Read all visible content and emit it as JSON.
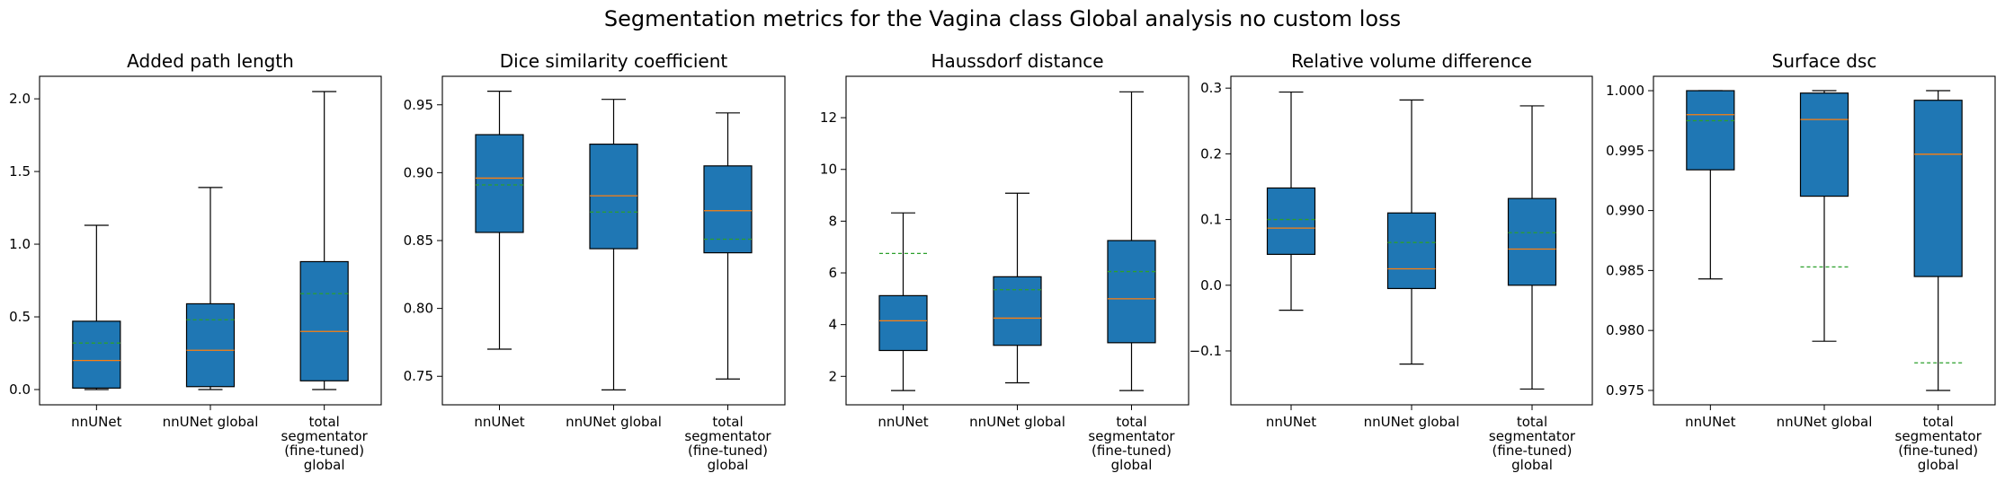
{
  "suptitle": "Segmentation metrics for the Vagina class Global analysis no custom loss",
  "colors": {
    "box_fill": "#1f77b4",
    "median": "#ff7f0e",
    "mean": "#2ca02c",
    "edge": "#000000"
  },
  "chart_data": [
    {
      "type": "box",
      "title": "Added path length",
      "categories": [
        "nnUNet",
        "nnUNet global",
        "total\nsegmentator\n(fine-tuned)\nglobal"
      ],
      "ylim": [
        -0.105,
        2.155
      ],
      "yticks": [
        0.0,
        0.5,
        1.0,
        1.5,
        2.0
      ],
      "yticklabels": [
        "0.0",
        "0.5",
        "1.0",
        "1.5",
        "2.0"
      ],
      "boxes": [
        {
          "whislo": 0.0,
          "q1": 0.01,
          "med": 0.2,
          "q3": 0.47,
          "whishi": 1.13,
          "mean": 0.32
        },
        {
          "whislo": 0.0,
          "q1": 0.02,
          "med": 0.27,
          "q3": 0.59,
          "whishi": 1.39,
          "mean": 0.48
        },
        {
          "whislo": 0.0,
          "q1": 0.06,
          "med": 0.4,
          "q3": 0.88,
          "whishi": 2.05,
          "mean": 0.66
        }
      ],
      "grid": false,
      "legend": "none"
    },
    {
      "type": "box",
      "title": "Dice similarity coefficient",
      "categories": [
        "nnUNet",
        "nnUNet global",
        "total\nsegmentator\n(fine-tuned)\nglobal"
      ],
      "ylim": [
        0.729,
        0.971
      ],
      "yticks": [
        0.75,
        0.8,
        0.85,
        0.9,
        0.95
      ],
      "yticklabels": [
        "0.75",
        "0.80",
        "0.85",
        "0.90",
        "0.95"
      ],
      "boxes": [
        {
          "whislo": 0.77,
          "q1": 0.856,
          "med": 0.896,
          "q3": 0.928,
          "whishi": 0.96,
          "mean": 0.891
        },
        {
          "whislo": 0.74,
          "q1": 0.844,
          "med": 0.883,
          "q3": 0.921,
          "whishi": 0.954,
          "mean": 0.871
        },
        {
          "whislo": 0.748,
          "q1": 0.841,
          "med": 0.872,
          "q3": 0.905,
          "whishi": 0.944,
          "mean": 0.851
        }
      ],
      "grid": false,
      "legend": "none"
    },
    {
      "type": "box",
      "title": "Haussdorf distance",
      "categories": [
        "nnUNet",
        "nnUNet global",
        "total\nsegmentator\n(fine-tuned)\nglobal"
      ],
      "ylim": [
        0.9,
        13.6
      ],
      "yticks": [
        2,
        4,
        6,
        8,
        10,
        12
      ],
      "yticklabels": [
        "2",
        "4",
        "6",
        "8",
        "10",
        "12"
      ],
      "boxes": [
        {
          "whislo": 1.45,
          "q1": 3.0,
          "med": 4.15,
          "q3": 5.12,
          "whishi": 8.32,
          "mean": 6.75
        },
        {
          "whislo": 1.75,
          "q1": 3.2,
          "med": 4.25,
          "q3": 5.85,
          "whishi": 9.08,
          "mean": 5.35
        },
        {
          "whislo": 1.45,
          "q1": 3.3,
          "med": 5.0,
          "q3": 7.25,
          "whishi": 13.0,
          "mean": 6.05
        }
      ],
      "grid": false,
      "legend": "none"
    },
    {
      "type": "box",
      "title": "Relative volume difference",
      "categories": [
        "nnUNet",
        "nnUNet global",
        "total\nsegmentator\n(fine-tuned)\nglobal"
      ],
      "ylim": [
        -0.182,
        0.318
      ],
      "yticks": [
        -0.1,
        0.0,
        0.1,
        0.2,
        0.3
      ],
      "yticklabels": [
        "−0.1",
        "0.0",
        "0.1",
        "0.2",
        "0.3"
      ],
      "boxes": [
        {
          "whislo": -0.038,
          "q1": 0.047,
          "med": 0.087,
          "q3": 0.148,
          "whishi": 0.294,
          "mean": 0.1
        },
        {
          "whislo": -0.12,
          "q1": -0.005,
          "med": 0.025,
          "q3": 0.11,
          "whishi": 0.282,
          "mean": 0.065
        },
        {
          "whislo": -0.158,
          "q1": 0.0,
          "med": 0.055,
          "q3": 0.132,
          "whishi": 0.273,
          "mean": 0.08
        }
      ],
      "grid": false,
      "legend": "none"
    },
    {
      "type": "box",
      "title": "Surface dsc",
      "categories": [
        "nnUNet",
        "nnUNet global",
        "total\nsegmentator\n(fine-tuned)\nglobal"
      ],
      "ylim": [
        0.9738,
        1.0012
      ],
      "yticks": [
        0.975,
        0.98,
        0.985,
        0.99,
        0.995,
        1.0
      ],
      "yticklabels": [
        "0.975",
        "0.980",
        "0.985",
        "0.990",
        "0.995",
        "1.000"
      ],
      "boxes": [
        {
          "whislo": 0.9843,
          "q1": 0.9934,
          "med": 0.998,
          "q3": 1.0,
          "whishi": 1.0,
          "mean": 0.9975
        },
        {
          "whislo": 0.9791,
          "q1": 0.9912,
          "med": 0.9976,
          "q3": 0.9998,
          "whishi": 1.0,
          "mean": 0.9853
        },
        {
          "whislo": 0.975,
          "q1": 0.9845,
          "med": 0.9947,
          "q3": 0.9992,
          "whishi": 1.0,
          "mean": 0.9773
        }
      ],
      "grid": false,
      "legend": "none"
    }
  ]
}
